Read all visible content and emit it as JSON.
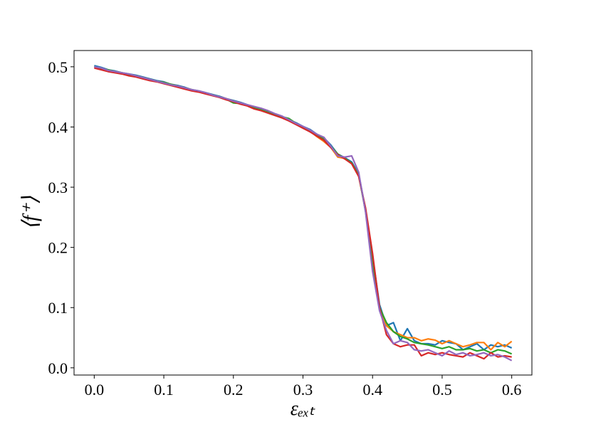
{
  "chart_data": {
    "type": "line",
    "x_label": "εₑₓₜ",
    "y_label": "⟨f⁺⟩",
    "x": [
      0,
      0.01,
      0.02,
      0.03,
      0.04,
      0.05,
      0.06,
      0.07,
      0.08,
      0.09,
      0.1,
      0.11,
      0.12,
      0.13,
      0.14,
      0.15,
      0.16,
      0.17,
      0.18,
      0.19,
      0.2,
      0.21,
      0.22,
      0.23,
      0.24,
      0.25,
      0.26,
      0.27,
      0.28,
      0.29,
      0.3,
      0.31,
      0.32,
      0.33,
      0.34,
      0.35,
      0.36,
      0.37,
      0.38,
      0.39,
      0.4,
      0.41,
      0.42,
      0.43,
      0.44,
      0.45,
      0.46,
      0.47,
      0.48,
      0.49,
      0.5,
      0.51,
      0.52,
      0.53,
      0.54,
      0.55,
      0.56,
      0.57,
      0.58,
      0.59,
      0.6
    ],
    "series": [
      {
        "color": "#1f77b4",
        "values": [
          0.502,
          0.499,
          0.495,
          0.493,
          0.49,
          0.488,
          0.486,
          0.483,
          0.48,
          0.477,
          0.475,
          0.471,
          0.469,
          0.466,
          0.462,
          0.46,
          0.457,
          0.454,
          0.451,
          0.447,
          0.444,
          0.441,
          0.437,
          0.433,
          0.43,
          0.425,
          0.42,
          0.417,
          0.412,
          0.407,
          0.401,
          0.396,
          0.388,
          0.382,
          0.37,
          0.355,
          0.349,
          0.342,
          0.322,
          0.262,
          0.185,
          0.105,
          0.07,
          0.075,
          0.045,
          0.065,
          0.045,
          0.04,
          0.04,
          0.038,
          0.045,
          0.042,
          0.04,
          0.03,
          0.035,
          0.04,
          0.03,
          0.038,
          0.035,
          0.038,
          0.033
        ]
      },
      {
        "color": "#ff7f0e",
        "values": [
          0.5,
          0.497,
          0.494,
          0.492,
          0.49,
          0.487,
          0.485,
          0.482,
          0.479,
          0.476,
          0.474,
          0.471,
          0.468,
          0.465,
          0.462,
          0.459,
          0.456,
          0.453,
          0.45,
          0.447,
          0.443,
          0.44,
          0.436,
          0.431,
          0.428,
          0.424,
          0.421,
          0.416,
          0.411,
          0.405,
          0.399,
          0.393,
          0.384,
          0.376,
          0.366,
          0.35,
          0.348,
          0.34,
          0.32,
          0.26,
          0.18,
          0.1,
          0.07,
          0.06,
          0.055,
          0.05,
          0.05,
          0.045,
          0.048,
          0.046,
          0.04,
          0.045,
          0.04,
          0.035,
          0.038,
          0.042,
          0.042,
          0.03,
          0.042,
          0.035,
          0.044
        ]
      },
      {
        "color": "#2ca02c",
        "values": [
          0.5,
          0.497,
          0.495,
          0.492,
          0.49,
          0.487,
          0.485,
          0.482,
          0.479,
          0.476,
          0.474,
          0.471,
          0.468,
          0.465,
          0.462,
          0.459,
          0.456,
          0.453,
          0.45,
          0.446,
          0.44,
          0.439,
          0.436,
          0.432,
          0.429,
          0.425,
          0.421,
          0.417,
          0.414,
          0.406,
          0.4,
          0.394,
          0.387,
          0.38,
          0.368,
          0.355,
          0.348,
          0.34,
          0.32,
          0.26,
          0.17,
          0.1,
          0.075,
          0.06,
          0.052,
          0.048,
          0.042,
          0.04,
          0.038,
          0.035,
          0.032,
          0.035,
          0.03,
          0.03,
          0.032,
          0.028,
          0.03,
          0.025,
          0.03,
          0.028,
          0.023
        ]
      },
      {
        "color": "#d62728",
        "values": [
          0.498,
          0.495,
          0.492,
          0.49,
          0.488,
          0.485,
          0.483,
          0.48,
          0.477,
          0.475,
          0.472,
          0.469,
          0.466,
          0.463,
          0.46,
          0.458,
          0.455,
          0.452,
          0.449,
          0.445,
          0.442,
          0.438,
          0.435,
          0.43,
          0.427,
          0.423,
          0.419,
          0.415,
          0.41,
          0.404,
          0.398,
          0.392,
          0.385,
          0.378,
          0.366,
          0.354,
          0.347,
          0.339,
          0.318,
          0.265,
          0.19,
          0.1,
          0.055,
          0.04,
          0.035,
          0.038,
          0.038,
          0.02,
          0.025,
          0.022,
          0.025,
          0.022,
          0.02,
          0.018,
          0.025,
          0.02,
          0.015,
          0.025,
          0.018,
          0.02,
          0.018
        ]
      },
      {
        "color": "#9467bd",
        "values": [
          0.5,
          0.498,
          0.494,
          0.492,
          0.49,
          0.488,
          0.485,
          0.482,
          0.479,
          0.476,
          0.473,
          0.47,
          0.468,
          0.465,
          0.462,
          0.46,
          0.457,
          0.453,
          0.45,
          0.447,
          0.443,
          0.44,
          0.437,
          0.434,
          0.431,
          0.427,
          0.422,
          0.418,
          0.412,
          0.406,
          0.401,
          0.395,
          0.388,
          0.383,
          0.368,
          0.352,
          0.35,
          0.352,
          0.325,
          0.258,
          0.16,
          0.095,
          0.062,
          0.04,
          0.045,
          0.042,
          0.03,
          0.028,
          0.03,
          0.025,
          0.02,
          0.028,
          0.022,
          0.025,
          0.02,
          0.022,
          0.025,
          0.02,
          0.022,
          0.018,
          0.012
        ]
      }
    ],
    "xlim": [
      -0.029,
      0.629
    ],
    "ylim": [
      -0.012,
      0.527
    ],
    "xticks": [
      {
        "value": 0,
        "label": "0.0"
      },
      0.1,
      0.2,
      0.3,
      0.4,
      0.5,
      0.6
    ],
    "yticks": [
      {
        "value": 0,
        "label": "0.0"
      },
      0.1,
      0.2,
      0.3,
      0.4,
      0.5
    ],
    "grid": false
  }
}
